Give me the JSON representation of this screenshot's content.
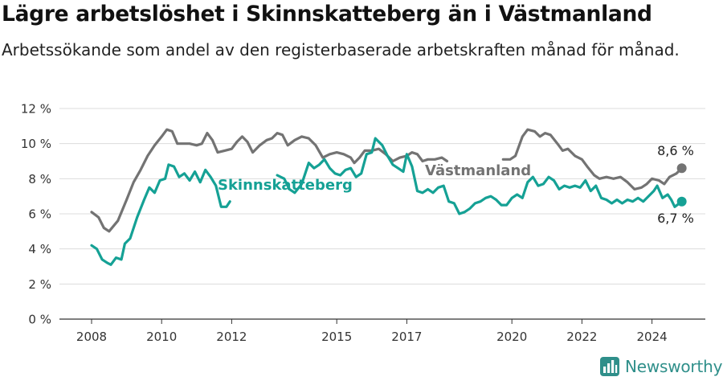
{
  "title": "Lägre arbetslöshet i Skinnskatteberg än i Västmanland",
  "subtitle": "Arbetssökande som andel av den registerbaserade arbetskraften månad för månad.",
  "brand": {
    "name": "Newsworthy"
  },
  "colors": {
    "skinnskatteberg": "#15a195",
    "vastmanland": "#737373",
    "grid": "#dcdcdc",
    "axis": "#333333"
  },
  "chart_data": {
    "type": "line",
    "xlim": [
      2008,
      2025
    ],
    "ylim": [
      0,
      12
    ],
    "y_ticks": [
      0,
      2,
      4,
      6,
      8,
      10,
      12
    ],
    "y_tick_labels": [
      "0 %",
      "2 %",
      "4 %",
      "6 %",
      "8 %",
      "10 %",
      "12 %"
    ],
    "x_ticks": [
      2008,
      2010,
      2012,
      2015,
      2017,
      2020,
      2022,
      2024
    ],
    "x_tick_labels": [
      "2008",
      "2010",
      "2012",
      "2015",
      "2017",
      "2020",
      "2022",
      "2024"
    ],
    "grid": "horizontal",
    "series": [
      {
        "name": "Västmanland",
        "end_label": "8,6 %",
        "points": [
          [
            2008.0,
            6.1
          ],
          [
            2008.2,
            5.8
          ],
          [
            2008.35,
            5.2
          ],
          [
            2008.5,
            5.0
          ],
          [
            2008.75,
            5.6
          ],
          [
            2009.0,
            6.8
          ],
          [
            2009.2,
            7.8
          ],
          [
            2009.4,
            8.5
          ],
          [
            2009.6,
            9.3
          ],
          [
            2009.8,
            9.9
          ],
          [
            2010.0,
            10.4
          ],
          [
            2010.15,
            10.8
          ],
          [
            2010.3,
            10.7
          ],
          [
            2010.45,
            10.0
          ],
          [
            2010.6,
            10.0
          ],
          [
            2010.8,
            10.0
          ],
          [
            2011.0,
            9.9
          ],
          [
            2011.15,
            10.0
          ],
          [
            2011.3,
            10.6
          ],
          [
            2011.45,
            10.2
          ],
          [
            2011.6,
            9.5
          ],
          [
            2011.8,
            9.6
          ],
          [
            2012.0,
            9.7
          ],
          [
            2012.15,
            10.1
          ],
          [
            2012.3,
            10.4
          ],
          [
            2012.45,
            10.1
          ],
          [
            2012.6,
            9.5
          ],
          [
            2012.8,
            9.9
          ],
          [
            2013.0,
            10.2
          ],
          [
            2013.15,
            10.3
          ],
          [
            2013.3,
            10.6
          ],
          [
            2013.45,
            10.5
          ],
          [
            2013.6,
            9.9
          ],
          [
            2013.8,
            10.2
          ],
          [
            2014.0,
            10.4
          ],
          [
            2014.2,
            10.3
          ],
          [
            2014.4,
            9.9
          ],
          [
            2014.6,
            9.2
          ],
          [
            2014.8,
            9.4
          ],
          [
            2015.0,
            9.5
          ],
          [
            2015.2,
            9.4
          ],
          [
            2015.4,
            9.2
          ],
          [
            2015.5,
            8.9
          ],
          [
            2015.65,
            9.2
          ],
          [
            2015.8,
            9.6
          ],
          [
            2016.0,
            9.6
          ],
          [
            2016.2,
            9.7
          ],
          [
            2016.4,
            9.4
          ],
          [
            2016.6,
            9.0
          ],
          [
            2016.8,
            9.2
          ],
          [
            2017.0,
            9.3
          ],
          [
            2017.15,
            9.5
          ],
          [
            2017.3,
            9.4
          ],
          [
            2017.45,
            9.0
          ],
          [
            2017.6,
            9.1
          ],
          [
            2017.8,
            9.1
          ],
          [
            2018.0,
            9.2
          ],
          [
            2018.15,
            9.0
          ],
          null,
          [
            2019.75,
            9.1
          ],
          [
            2019.95,
            9.1
          ],
          [
            2020.1,
            9.3
          ],
          [
            2020.3,
            10.4
          ],
          [
            2020.45,
            10.8
          ],
          [
            2020.65,
            10.7
          ],
          [
            2020.8,
            10.4
          ],
          [
            2020.95,
            10.6
          ],
          [
            2021.1,
            10.5
          ],
          [
            2021.3,
            10.0
          ],
          [
            2021.45,
            9.6
          ],
          [
            2021.6,
            9.7
          ],
          [
            2021.8,
            9.3
          ],
          [
            2022.0,
            9.1
          ],
          [
            2022.15,
            8.7
          ],
          [
            2022.35,
            8.2
          ],
          [
            2022.5,
            8.0
          ],
          [
            2022.7,
            8.1
          ],
          [
            2022.9,
            8.0
          ],
          [
            2023.1,
            8.1
          ],
          [
            2023.3,
            7.8
          ],
          [
            2023.5,
            7.4
          ],
          [
            2023.7,
            7.5
          ],
          [
            2023.85,
            7.7
          ],
          [
            2024.0,
            8.0
          ],
          [
            2024.2,
            7.9
          ],
          [
            2024.35,
            7.7
          ],
          [
            2024.5,
            8.1
          ],
          [
            2024.7,
            8.3
          ],
          [
            2024.85,
            8.6
          ]
        ]
      },
      {
        "name": "Skinnskatteberg",
        "end_label": "6,7 %",
        "points": [
          [
            2008.0,
            4.2
          ],
          [
            2008.15,
            4.0
          ],
          [
            2008.3,
            3.4
          ],
          [
            2008.45,
            3.2
          ],
          [
            2008.55,
            3.1
          ],
          [
            2008.7,
            3.5
          ],
          [
            2008.85,
            3.4
          ],
          [
            2008.95,
            4.3
          ],
          [
            2009.1,
            4.6
          ],
          [
            2009.3,
            5.8
          ],
          [
            2009.5,
            6.8
          ],
          [
            2009.65,
            7.5
          ],
          [
            2009.8,
            7.2
          ],
          [
            2009.95,
            7.9
          ],
          [
            2010.1,
            8.0
          ],
          [
            2010.2,
            8.8
          ],
          [
            2010.35,
            8.7
          ],
          [
            2010.5,
            8.1
          ],
          [
            2010.65,
            8.3
          ],
          [
            2010.8,
            7.9
          ],
          [
            2010.95,
            8.4
          ],
          [
            2011.1,
            7.8
          ],
          [
            2011.25,
            8.5
          ],
          [
            2011.4,
            8.1
          ],
          [
            2011.55,
            7.6
          ],
          [
            2011.7,
            6.4
          ],
          [
            2011.85,
            6.4
          ],
          [
            2011.95,
            6.7
          ],
          null,
          [
            2013.3,
            8.2
          ],
          [
            2013.5,
            8.0
          ],
          [
            2013.65,
            7.4
          ],
          [
            2013.8,
            7.2
          ],
          [
            2014.0,
            7.7
          ],
          [
            2014.2,
            8.9
          ],
          [
            2014.35,
            8.6
          ],
          [
            2014.5,
            8.8
          ],
          [
            2014.65,
            9.1
          ],
          [
            2014.8,
            8.6
          ],
          [
            2014.95,
            8.3
          ],
          [
            2015.1,
            8.2
          ],
          [
            2015.25,
            8.5
          ],
          [
            2015.4,
            8.6
          ],
          [
            2015.55,
            8.1
          ],
          [
            2015.7,
            8.3
          ],
          [
            2015.85,
            9.4
          ],
          [
            2016.0,
            9.5
          ],
          [
            2016.1,
            10.3
          ],
          [
            2016.3,
            9.9
          ],
          [
            2016.45,
            9.3
          ],
          [
            2016.6,
            8.8
          ],
          [
            2016.75,
            8.6
          ],
          [
            2016.9,
            8.4
          ],
          [
            2017.0,
            9.4
          ],
          [
            2017.15,
            8.7
          ],
          [
            2017.3,
            7.3
          ],
          [
            2017.45,
            7.2
          ],
          [
            2017.6,
            7.4
          ],
          [
            2017.75,
            7.2
          ],
          [
            2017.9,
            7.5
          ],
          [
            2018.05,
            7.6
          ],
          [
            2018.2,
            6.7
          ],
          [
            2018.35,
            6.6
          ],
          [
            2018.5,
            6.0
          ],
          [
            2018.65,
            6.1
          ],
          [
            2018.8,
            6.3
          ],
          [
            2018.95,
            6.6
          ],
          [
            2019.1,
            6.7
          ],
          [
            2019.25,
            6.9
          ],
          [
            2019.4,
            7.0
          ],
          [
            2019.55,
            6.8
          ],
          [
            2019.7,
            6.5
          ],
          [
            2019.85,
            6.5
          ],
          [
            2020.0,
            6.9
          ],
          [
            2020.15,
            7.1
          ],
          [
            2020.3,
            6.9
          ],
          [
            2020.45,
            7.8
          ],
          [
            2020.6,
            8.1
          ],
          [
            2020.75,
            7.6
          ],
          [
            2020.9,
            7.7
          ],
          [
            2021.05,
            8.1
          ],
          [
            2021.2,
            7.9
          ],
          [
            2021.35,
            7.4
          ],
          [
            2021.5,
            7.6
          ],
          [
            2021.65,
            7.5
          ],
          [
            2021.8,
            7.6
          ],
          [
            2021.95,
            7.5
          ],
          [
            2022.1,
            7.9
          ],
          [
            2022.25,
            7.3
          ],
          [
            2022.4,
            7.6
          ],
          [
            2022.55,
            6.9
          ],
          [
            2022.7,
            6.8
          ],
          [
            2022.85,
            6.6
          ],
          [
            2023.0,
            6.8
          ],
          [
            2023.15,
            6.6
          ],
          [
            2023.3,
            6.8
          ],
          [
            2023.45,
            6.7
          ],
          [
            2023.6,
            6.9
          ],
          [
            2023.75,
            6.7
          ],
          [
            2023.9,
            7.0
          ],
          [
            2024.05,
            7.3
          ],
          [
            2024.15,
            7.6
          ],
          [
            2024.3,
            6.9
          ],
          [
            2024.45,
            7.1
          ],
          [
            2024.55,
            6.8
          ],
          [
            2024.65,
            6.4
          ],
          [
            2024.85,
            6.7
          ]
        ]
      }
    ]
  }
}
